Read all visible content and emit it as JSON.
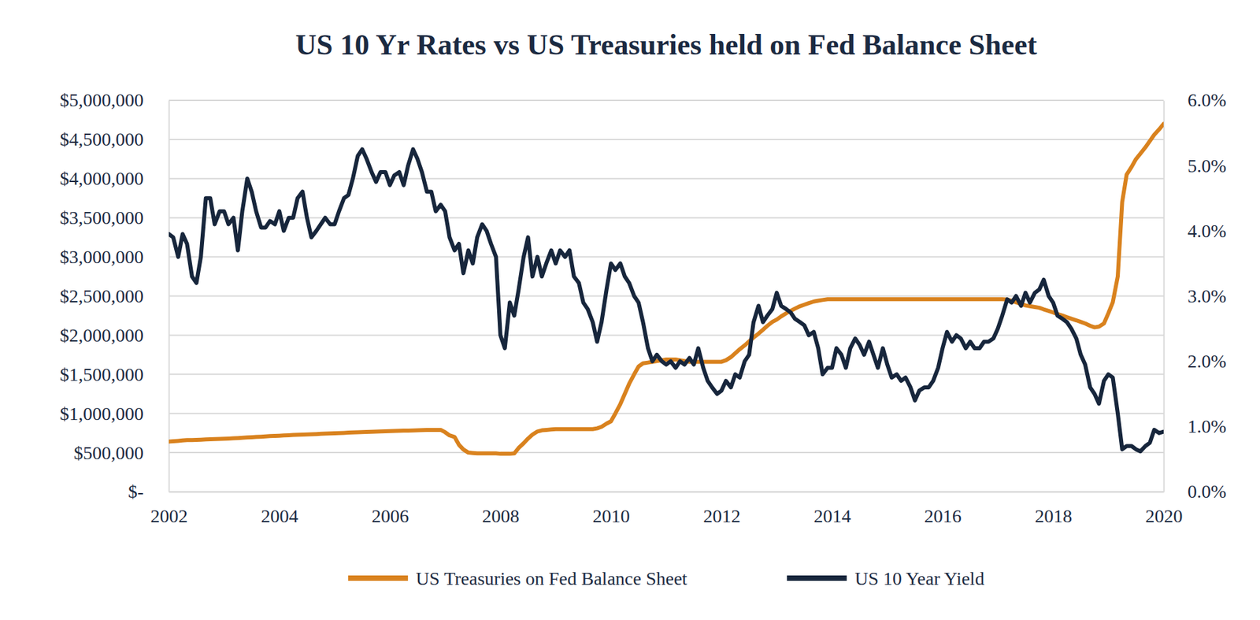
{
  "chart_data": {
    "type": "line",
    "title": "US 10 Yr Rates vs US Treasuries held on Fed Balance Sheet",
    "x": [
      2002,
      2002.08,
      2002.17,
      2002.25,
      2002.33,
      2002.42,
      2002.5,
      2002.58,
      2002.67,
      2002.75,
      2002.83,
      2002.92,
      2003,
      2003.08,
      2003.17,
      2003.25,
      2003.33,
      2003.42,
      2003.5,
      2003.58,
      2003.67,
      2003.75,
      2003.83,
      2003.92,
      2004,
      2004.08,
      2004.17,
      2004.25,
      2004.33,
      2004.42,
      2004.5,
      2004.58,
      2004.67,
      2004.75,
      2004.83,
      2004.92,
      2005,
      2005.08,
      2005.17,
      2005.25,
      2005.33,
      2005.42,
      2005.5,
      2005.58,
      2005.67,
      2005.75,
      2005.83,
      2005.92,
      2006,
      2006.08,
      2006.17,
      2006.25,
      2006.33,
      2006.42,
      2006.5,
      2006.58,
      2006.67,
      2006.75,
      2006.83,
      2006.92,
      2007,
      2007.08,
      2007.17,
      2007.25,
      2007.33,
      2007.42,
      2007.5,
      2007.58,
      2007.67,
      2007.75,
      2007.83,
      2007.92,
      2008,
      2008.08,
      2008.17,
      2008.25,
      2008.33,
      2008.42,
      2008.5,
      2008.58,
      2008.67,
      2008.75,
      2008.83,
      2008.92,
      2009,
      2009.08,
      2009.17,
      2009.25,
      2009.33,
      2009.42,
      2009.5,
      2009.58,
      2009.67,
      2009.75,
      2009.83,
      2009.92,
      2010,
      2010.08,
      2010.17,
      2010.25,
      2010.33,
      2010.42,
      2010.5,
      2010.58,
      2010.67,
      2010.75,
      2010.83,
      2010.92,
      2011,
      2011.08,
      2011.17,
      2011.25,
      2011.33,
      2011.42,
      2011.5,
      2011.58,
      2011.67,
      2011.75,
      2011.83,
      2011.92,
      2012,
      2012.08,
      2012.17,
      2012.25,
      2012.33,
      2012.42,
      2012.5,
      2012.58,
      2012.67,
      2012.75,
      2012.83,
      2012.92,
      2013,
      2013.08,
      2013.17,
      2013.25,
      2013.33,
      2013.42,
      2013.5,
      2013.58,
      2013.67,
      2013.75,
      2013.83,
      2013.92,
      2014,
      2014.08,
      2014.17,
      2014.25,
      2014.33,
      2014.42,
      2014.5,
      2014.58,
      2014.67,
      2014.75,
      2014.83,
      2014.92,
      2015,
      2015.08,
      2015.17,
      2015.25,
      2015.33,
      2015.42,
      2015.5,
      2015.58,
      2015.67,
      2015.75,
      2015.83,
      2015.92,
      2016,
      2016.08,
      2016.17,
      2016.25,
      2016.33,
      2016.42,
      2016.5,
      2016.58,
      2016.67,
      2016.75,
      2016.83,
      2016.92,
      2017,
      2017.08,
      2017.17,
      2017.25,
      2017.33,
      2017.42,
      2017.5,
      2017.58,
      2017.67,
      2017.75,
      2017.83,
      2017.92,
      2018,
      2018.08,
      2018.17,
      2018.25,
      2018.33,
      2018.42,
      2018.5,
      2018.58,
      2018.67,
      2018.75,
      2018.83,
      2018.92,
      2019,
      2019.08,
      2019.17,
      2019.25,
      2019.33,
      2019.42,
      2019.5,
      2019.58,
      2019.67,
      2019.75,
      2019.83,
      2019.92,
      2020
    ],
    "xlim": [
      2002,
      2020
    ],
    "xticks": [
      2002,
      2004,
      2006,
      2008,
      2010,
      2012,
      2014,
      2016,
      2018,
      2020
    ],
    "ylim": [
      0,
      5000000
    ],
    "yticks": [
      {
        "value": 0,
        "label": "$-"
      },
      {
        "value": 500000,
        "label": "$500,000"
      },
      {
        "value": 1000000,
        "label": "$1,000,000"
      },
      {
        "value": 1500000,
        "label": "$1,500,000"
      },
      {
        "value": 2000000,
        "label": "$2,000,000"
      },
      {
        "value": 2500000,
        "label": "$2,500,000"
      },
      {
        "value": 3000000,
        "label": "$3,000,000"
      },
      {
        "value": 3500000,
        "label": "$3,500,000"
      },
      {
        "value": 4000000,
        "label": "$4,000,000"
      },
      {
        "value": 4500000,
        "label": "$4,500,000"
      },
      {
        "value": 5000000,
        "label": "$5,000,000"
      }
    ],
    "y2lim": [
      0,
      6
    ],
    "y2ticks": [
      {
        "value": 0,
        "label": "0.0%"
      },
      {
        "value": 1,
        "label": "1.0%"
      },
      {
        "value": 2,
        "label": "2.0%"
      },
      {
        "value": 3,
        "label": "3.0%"
      },
      {
        "value": 4,
        "label": "4.0%"
      },
      {
        "value": 5,
        "label": "5.0%"
      },
      {
        "value": 6,
        "label": "6.0%"
      }
    ],
    "grid": true,
    "legend": "bottom",
    "series": [
      {
        "name": "US Treasuries on Fed Balance Sheet",
        "color": "#d9821e",
        "values": [
          640000,
          645000,
          650000,
          655000,
          660000,
          660000,
          662000,
          665000,
          668000,
          670000,
          672000,
          675000,
          678000,
          680000,
          683000,
          686000,
          690000,
          693000,
          696000,
          700000,
          703000,
          706000,
          710000,
          713000,
          716000,
          719000,
          722000,
          725000,
          727000,
          730000,
          732000,
          735000,
          737000,
          740000,
          742000,
          745000,
          748000,
          750000,
          752000,
          755000,
          757000,
          760000,
          762000,
          764000,
          766000,
          768000,
          770000,
          772000,
          774000,
          776000,
          778000,
          780000,
          782000,
          784000,
          786000,
          788000,
          790000,
          790000,
          790000,
          790000,
          760000,
          720000,
          700000,
          600000,
          540000,
          500000,
          495000,
          490000,
          490000,
          490000,
          490000,
          490000,
          485000,
          485000,
          485000,
          490000,
          560000,
          620000,
          680000,
          730000,
          770000,
          785000,
          790000,
          795000,
          800000,
          800000,
          800000,
          800000,
          800000,
          800000,
          800000,
          800000,
          800000,
          810000,
          830000,
          870000,
          900000,
          1000000,
          1120000,
          1250000,
          1380000,
          1500000,
          1600000,
          1640000,
          1650000,
          1660000,
          1670000,
          1680000,
          1690000,
          1690000,
          1690000,
          1680000,
          1670000,
          1660000,
          1660000,
          1660000,
          1660000,
          1660000,
          1660000,
          1660000,
          1660000,
          1680000,
          1720000,
          1770000,
          1820000,
          1870000,
          1920000,
          1970000,
          2020000,
          2070000,
          2120000,
          2170000,
          2200000,
          2240000,
          2280000,
          2310000,
          2340000,
          2370000,
          2390000,
          2410000,
          2430000,
          2440000,
          2450000,
          2460000,
          2460000,
          2460000,
          2460000,
          2460000,
          2460000,
          2460000,
          2460000,
          2460000,
          2460000,
          2460000,
          2460000,
          2460000,
          2460000,
          2460000,
          2460000,
          2460000,
          2460000,
          2460000,
          2460000,
          2460000,
          2460000,
          2460000,
          2460000,
          2460000,
          2460000,
          2460000,
          2460000,
          2460000,
          2460000,
          2460000,
          2460000,
          2460000,
          2460000,
          2460000,
          2460000,
          2460000,
          2460000,
          2460000,
          2455000,
          2440000,
          2420000,
          2400000,
          2380000,
          2370000,
          2360000,
          2350000,
          2330000,
          2310000,
          2290000,
          2270000,
          2250000,
          2230000,
          2210000,
          2190000,
          2170000,
          2150000,
          2120000,
          2100000,
          2110000,
          2150000,
          2280000,
          2420000,
          2750000,
          3700000,
          4050000,
          4150000,
          4250000,
          4320000,
          4400000,
          4480000,
          4560000,
          4630000,
          4700000
        ]
      },
      {
        "name": "US 10 Year Yield",
        "color": "#17263c",
        "axis": "y2",
        "values": [
          3.95,
          3.9,
          3.6,
          3.95,
          3.8,
          3.3,
          3.2,
          3.6,
          4.5,
          4.5,
          4.1,
          4.3,
          4.3,
          4.1,
          4.2,
          3.7,
          4.3,
          4.8,
          4.6,
          4.3,
          4.05,
          4.05,
          4.15,
          4.1,
          4.3,
          4.0,
          4.2,
          4.2,
          4.5,
          4.6,
          4.2,
          3.9,
          4.0,
          4.1,
          4.2,
          4.1,
          4.1,
          4.3,
          4.5,
          4.55,
          4.8,
          5.15,
          5.25,
          5.1,
          4.9,
          4.75,
          4.9,
          4.9,
          4.7,
          4.85,
          4.9,
          4.7,
          5.0,
          5.25,
          5.1,
          4.9,
          4.6,
          4.6,
          4.3,
          4.4,
          4.3,
          3.9,
          3.7,
          3.8,
          3.35,
          3.7,
          3.5,
          3.9,
          4.1,
          4.0,
          3.8,
          3.6,
          2.4,
          2.2,
          2.9,
          2.7,
          3.1,
          3.6,
          3.9,
          3.3,
          3.6,
          3.3,
          3.5,
          3.7,
          3.5,
          3.7,
          3.6,
          3.7,
          3.3,
          3.2,
          2.9,
          2.8,
          2.6,
          2.3,
          2.6,
          3.1,
          3.5,
          3.4,
          3.5,
          3.3,
          3.2,
          3.0,
          2.9,
          2.6,
          2.2,
          2.0,
          2.1,
          2.0,
          1.95,
          2.0,
          1.9,
          2.0,
          1.95,
          2.05,
          1.95,
          2.2,
          1.9,
          1.7,
          1.6,
          1.5,
          1.55,
          1.7,
          1.6,
          1.8,
          1.75,
          2.0,
          2.1,
          2.6,
          2.85,
          2.6,
          2.7,
          2.8,
          3.05,
          2.85,
          2.8,
          2.75,
          2.65,
          2.6,
          2.55,
          2.4,
          2.45,
          2.2,
          1.8,
          1.9,
          1.9,
          2.2,
          2.1,
          1.9,
          2.2,
          2.35,
          2.25,
          2.1,
          2.3,
          2.1,
          1.9,
          2.2,
          1.95,
          1.75,
          1.8,
          1.7,
          1.75,
          1.6,
          1.4,
          1.55,
          1.6,
          1.6,
          1.7,
          1.9,
          2.2,
          2.45,
          2.3,
          2.4,
          2.35,
          2.2,
          2.3,
          2.2,
          2.2,
          2.3,
          2.3,
          2.35,
          2.5,
          2.7,
          2.95,
          2.9,
          3.0,
          2.85,
          3.05,
          2.9,
          3.05,
          3.1,
          3.25,
          3.0,
          2.9,
          2.7,
          2.65,
          2.6,
          2.5,
          2.35,
          2.1,
          1.95,
          1.6,
          1.5,
          1.35,
          1.7,
          1.8,
          1.75,
          1.2,
          0.65,
          0.7,
          0.7,
          0.65,
          0.62,
          0.7,
          0.75,
          0.95,
          0.9,
          0.92
        ]
      }
    ]
  }
}
